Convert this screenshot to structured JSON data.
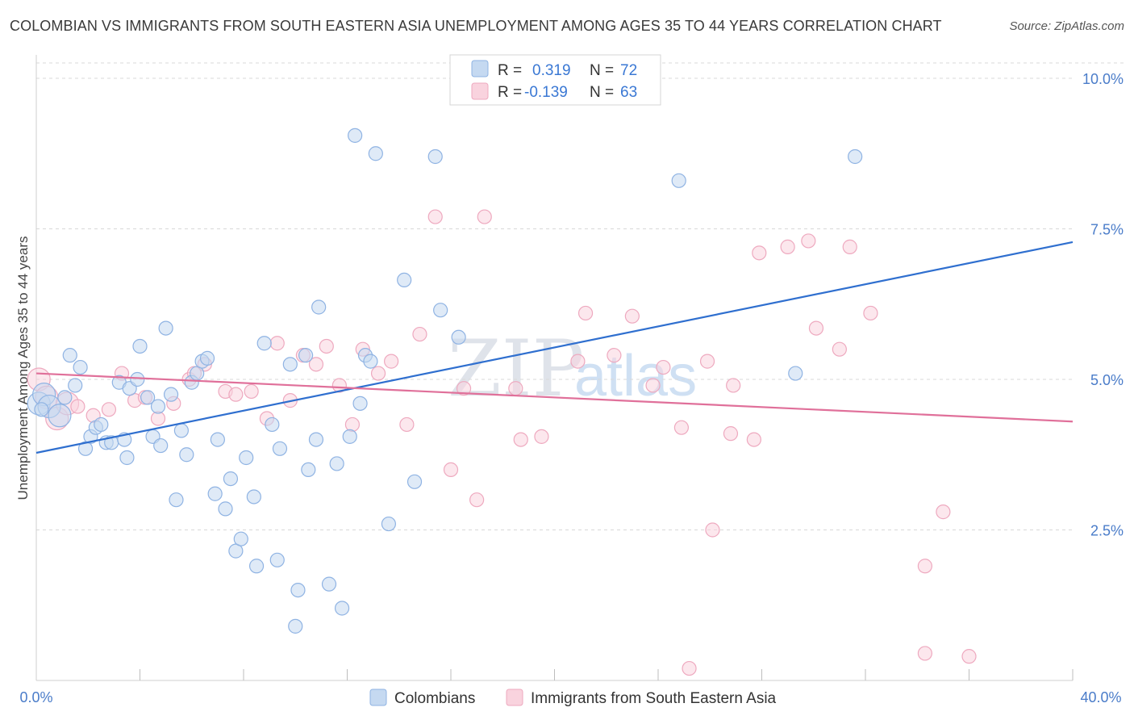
{
  "title": "COLOMBIAN VS IMMIGRANTS FROM SOUTH EASTERN ASIA UNEMPLOYMENT AMONG AGES 35 TO 44 YEARS CORRELATION CHART",
  "source": "Source: ZipAtlas.com",
  "watermark": {
    "zip": "ZIP",
    "atlas": "atlas"
  },
  "legend": {
    "rows": [
      {
        "r_label": "R =",
        "r_value": "0.319",
        "n_label": "N =",
        "n_value": "72"
      },
      {
        "r_label": "R =",
        "r_value": "-0.139",
        "n_label": "N =",
        "n_value": "63"
      }
    ]
  },
  "colors": {
    "blue_fill": "#c5d9f1",
    "blue_stroke": "#8fb3e3",
    "blue_line": "#2f6fcf",
    "pink_fill": "#f9d3de",
    "pink_stroke": "#eea9bf",
    "pink_line": "#e0709a",
    "grid": "#d8d8d8",
    "tick_text": "#4a7cc9"
  },
  "chart_data": {
    "type": "scatter",
    "title": "COLOMBIAN VS IMMIGRANTS FROM SOUTH EASTERN ASIA UNEMPLOYMENT AMONG AGES 35 TO 44 YEARS CORRELATION CHART",
    "xlabel": "",
    "ylabel": "Unemployment Among Ages 35 to 44 years",
    "xlim": [
      0,
      40
    ],
    "ylim": [
      0,
      10.25
    ],
    "x_tick_labels": [
      "0.0%",
      "40.0%"
    ],
    "y_ticks": [
      2.5,
      5.0,
      7.5,
      10.0
    ],
    "y_tick_labels": [
      "2.5%",
      "5.0%",
      "7.5%",
      "10.0%"
    ],
    "grid": "horizontal dashed",
    "legend_position": "top-center",
    "series": [
      {
        "name": "Colombians",
        "color": "#8fb3e3",
        "trend": {
          "x": [
            0,
            40
          ],
          "y": [
            3.78,
            7.28
          ]
        },
        "points": [
          [
            0.1,
            4.6
          ],
          [
            0.3,
            4.75
          ],
          [
            0.5,
            4.55
          ],
          [
            0.9,
            4.4
          ],
          [
            1.1,
            4.7
          ],
          [
            1.3,
            5.4
          ],
          [
            1.5,
            4.9
          ],
          [
            1.7,
            5.2
          ],
          [
            1.9,
            3.85
          ],
          [
            2.1,
            4.05
          ],
          [
            2.3,
            4.2
          ],
          [
            2.5,
            4.25
          ],
          [
            2.7,
            3.95
          ],
          [
            2.9,
            3.95
          ],
          [
            3.2,
            4.95
          ],
          [
            3.4,
            4.0
          ],
          [
            3.5,
            3.7
          ],
          [
            3.6,
            4.85
          ],
          [
            3.9,
            5.0
          ],
          [
            4.0,
            5.55
          ],
          [
            4.3,
            4.7
          ],
          [
            4.5,
            4.05
          ],
          [
            4.7,
            4.55
          ],
          [
            4.8,
            3.9
          ],
          [
            5.0,
            5.85
          ],
          [
            5.2,
            4.75
          ],
          [
            5.4,
            3.0
          ],
          [
            5.6,
            4.15
          ],
          [
            5.8,
            3.75
          ],
          [
            6.0,
            4.95
          ],
          [
            6.2,
            5.1
          ],
          [
            6.4,
            5.3
          ],
          [
            6.6,
            5.35
          ],
          [
            6.9,
            3.1
          ],
          [
            7.0,
            4.0
          ],
          [
            7.3,
            2.85
          ],
          [
            7.5,
            3.35
          ],
          [
            7.7,
            2.15
          ],
          [
            7.9,
            2.35
          ],
          [
            8.1,
            3.7
          ],
          [
            8.4,
            3.05
          ],
          [
            8.5,
            1.9
          ],
          [
            8.8,
            5.6
          ],
          [
            9.1,
            4.25
          ],
          [
            9.3,
            2.0
          ],
          [
            9.4,
            3.85
          ],
          [
            9.8,
            5.25
          ],
          [
            10.0,
            0.9
          ],
          [
            10.1,
            1.5
          ],
          [
            10.4,
            5.4
          ],
          [
            10.5,
            3.5
          ],
          [
            10.8,
            4.0
          ],
          [
            10.9,
            6.2
          ],
          [
            11.3,
            1.6
          ],
          [
            11.6,
            3.6
          ],
          [
            11.8,
            1.2
          ],
          [
            12.1,
            4.05
          ],
          [
            12.3,
            9.05
          ],
          [
            12.5,
            4.6
          ],
          [
            12.7,
            5.4
          ],
          [
            12.9,
            5.3
          ],
          [
            13.1,
            8.75
          ],
          [
            13.6,
            2.6
          ],
          [
            14.2,
            6.65
          ],
          [
            14.6,
            3.3
          ],
          [
            15.4,
            8.7
          ],
          [
            15.6,
            6.15
          ],
          [
            16.3,
            5.7
          ],
          [
            24.8,
            8.3
          ],
          [
            29.3,
            5.1
          ],
          [
            31.6,
            8.7
          ],
          [
            0.2,
            4.5
          ]
        ]
      },
      {
        "name": "Immigrants from South Eastern Asia",
        "color": "#eea9bf",
        "trend": {
          "x": [
            0,
            40
          ],
          "y": [
            5.1,
            4.3
          ]
        },
        "points": [
          [
            0.1,
            5.0
          ],
          [
            0.4,
            4.7
          ],
          [
            0.8,
            4.35
          ],
          [
            1.2,
            4.6
          ],
          [
            1.6,
            4.55
          ],
          [
            2.2,
            4.4
          ],
          [
            2.8,
            4.5
          ],
          [
            3.3,
            5.1
          ],
          [
            3.8,
            4.65
          ],
          [
            4.2,
            4.7
          ],
          [
            4.7,
            4.35
          ],
          [
            5.3,
            4.6
          ],
          [
            5.9,
            5.0
          ],
          [
            6.1,
            5.1
          ],
          [
            6.5,
            5.25
          ],
          [
            7.3,
            4.8
          ],
          [
            7.7,
            4.75
          ],
          [
            8.3,
            4.8
          ],
          [
            8.9,
            4.35
          ],
          [
            9.3,
            5.6
          ],
          [
            9.8,
            4.65
          ],
          [
            10.3,
            5.4
          ],
          [
            10.8,
            5.25
          ],
          [
            11.2,
            5.55
          ],
          [
            11.7,
            4.9
          ],
          [
            12.2,
            4.25
          ],
          [
            12.6,
            5.5
          ],
          [
            13.2,
            5.1
          ],
          [
            13.7,
            5.3
          ],
          [
            14.3,
            4.25
          ],
          [
            14.8,
            5.75
          ],
          [
            15.4,
            7.7
          ],
          [
            16.0,
            3.5
          ],
          [
            16.5,
            4.85
          ],
          [
            17.0,
            3.0
          ],
          [
            17.3,
            7.7
          ],
          [
            18.5,
            4.85
          ],
          [
            18.7,
            4.0
          ],
          [
            19.5,
            4.05
          ],
          [
            20.9,
            5.3
          ],
          [
            21.2,
            6.1
          ],
          [
            22.3,
            5.4
          ],
          [
            23.0,
            6.05
          ],
          [
            23.8,
            4.9
          ],
          [
            24.2,
            5.2
          ],
          [
            25.2,
            0.2
          ],
          [
            24.9,
            4.2
          ],
          [
            25.9,
            5.3
          ],
          [
            26.1,
            2.5
          ],
          [
            26.8,
            4.1
          ],
          [
            26.9,
            4.9
          ],
          [
            27.7,
            4.0
          ],
          [
            27.9,
            7.1
          ],
          [
            29.0,
            7.2
          ],
          [
            29.8,
            7.3
          ],
          [
            30.1,
            5.85
          ],
          [
            31.0,
            5.5
          ],
          [
            31.4,
            7.2
          ],
          [
            32.2,
            6.1
          ],
          [
            34.3,
            1.9
          ],
          [
            34.3,
            0.45
          ],
          [
            35.0,
            2.8
          ],
          [
            36.0,
            0.4
          ]
        ]
      }
    ]
  },
  "bottom_legend": {
    "items": [
      "Colombians",
      "Immigrants from South Eastern Asia"
    ]
  }
}
